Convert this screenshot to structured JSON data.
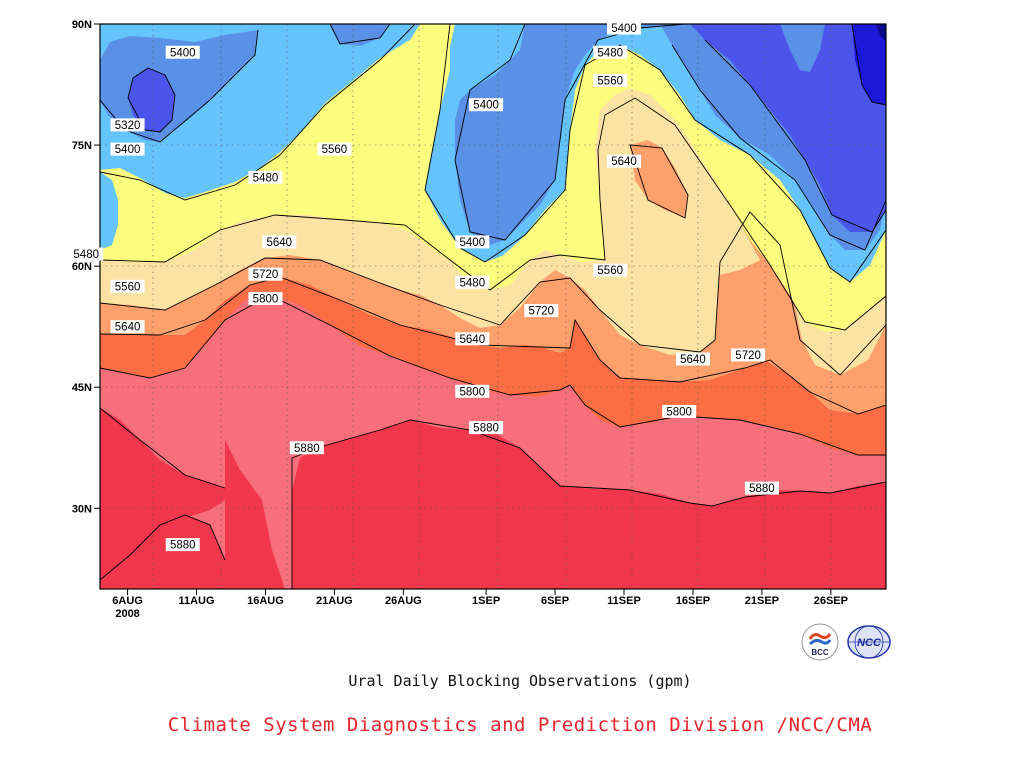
{
  "chart_data": {
    "type": "heatmap",
    "subtitle": "Ural Daily Blocking Observations (gpm)",
    "credit": "Climate System Diagnostics and Prediction Division /NCC/CMA",
    "x_tick_labels": [
      "6AUG",
      "11AUG",
      "16AUG",
      "21AUG",
      "26AUG",
      "1SEP",
      "6SEP",
      "11SEP",
      "16SEP",
      "21SEP",
      "26SEP"
    ],
    "x_year_label": "2008",
    "y_tick_labels": [
      "30N",
      "45N",
      "60N",
      "75N",
      "90N"
    ],
    "y_ticks": [
      30,
      45,
      60,
      75,
      90
    ],
    "ylim": [
      20,
      90
    ],
    "x_range": [
      "4AUG2008",
      "30SEP2008"
    ],
    "grid": true,
    "contour_levels": [
      5320,
      5400,
      5480,
      5560,
      5640,
      5720,
      5800,
      5880
    ],
    "fill_colors": {
      "lt5320": "#1d17d8",
      "5320": "#4b55ea",
      "5400": "#5a90e6",
      "5480": "#65c4fb",
      "5560": "#fcfc7e",
      "5640": "#fde3a3",
      "5720": "#fda06c",
      "5800": "#fb6e45",
      "5880": "#f76f7b",
      "gt5880": "#f0374b"
    },
    "contour_labels": [
      {
        "text": "5400",
        "date": "10AUG",
        "lat": 86.5
      },
      {
        "text": "5320",
        "date": "6AUG",
        "lat": 77.5
      },
      {
        "text": "5400",
        "date": "6AUG",
        "lat": 74.5
      },
      {
        "text": "5480",
        "date": "16AUG",
        "lat": 71.0
      },
      {
        "text": "5560",
        "date": "21AUG",
        "lat": 74.5
      },
      {
        "text": "5480",
        "date": "3AUG",
        "lat": 61.5
      },
      {
        "text": "5560",
        "date": "6AUG",
        "lat": 57.5
      },
      {
        "text": "5640",
        "date": "6AUG",
        "lat": 52.5
      },
      {
        "text": "5640",
        "date": "17AUG",
        "lat": 63.0
      },
      {
        "text": "5720",
        "date": "16AUG",
        "lat": 59.0
      },
      {
        "text": "5800",
        "date": "16AUG",
        "lat": 56.0
      },
      {
        "text": "5880",
        "date": "19AUG",
        "lat": 37.5
      },
      {
        "text": "5880",
        "date": "10AUG",
        "lat": 25.5
      },
      {
        "text": "5400",
        "date": "31AUG",
        "lat": 63.0
      },
      {
        "text": "5480",
        "date": "31AUG",
        "lat": 58.0
      },
      {
        "text": "5640",
        "date": "31AUG",
        "lat": 51.0
      },
      {
        "text": "5800",
        "date": "31AUG",
        "lat": 44.5
      },
      {
        "text": "5880",
        "date": "1SEP",
        "lat": 40.0
      },
      {
        "text": "5400",
        "date": "1SEP",
        "lat": 80.0
      },
      {
        "text": "5720",
        "date": "5SEP",
        "lat": 54.5
      },
      {
        "text": "5560",
        "date": "10SEP",
        "lat": 59.5
      },
      {
        "text": "5640",
        "date": "11SEP",
        "lat": 73.0
      },
      {
        "text": "5560",
        "date": "10SEP",
        "lat": 83.0
      },
      {
        "text": "5480",
        "date": "10SEP",
        "lat": 86.5
      },
      {
        "text": "5400",
        "date": "11SEP",
        "lat": 89.5
      },
      {
        "text": "5640",
        "date": "16SEP",
        "lat": 48.5
      },
      {
        "text": "5720",
        "date": "20SEP",
        "lat": 49.0
      },
      {
        "text": "5800",
        "date": "15SEP",
        "lat": 42.0
      },
      {
        "text": "5880",
        "date": "21SEP",
        "lat": 32.5
      }
    ]
  },
  "logos": {
    "bcc_text": "BCC",
    "ncc_text": "NCC"
  }
}
